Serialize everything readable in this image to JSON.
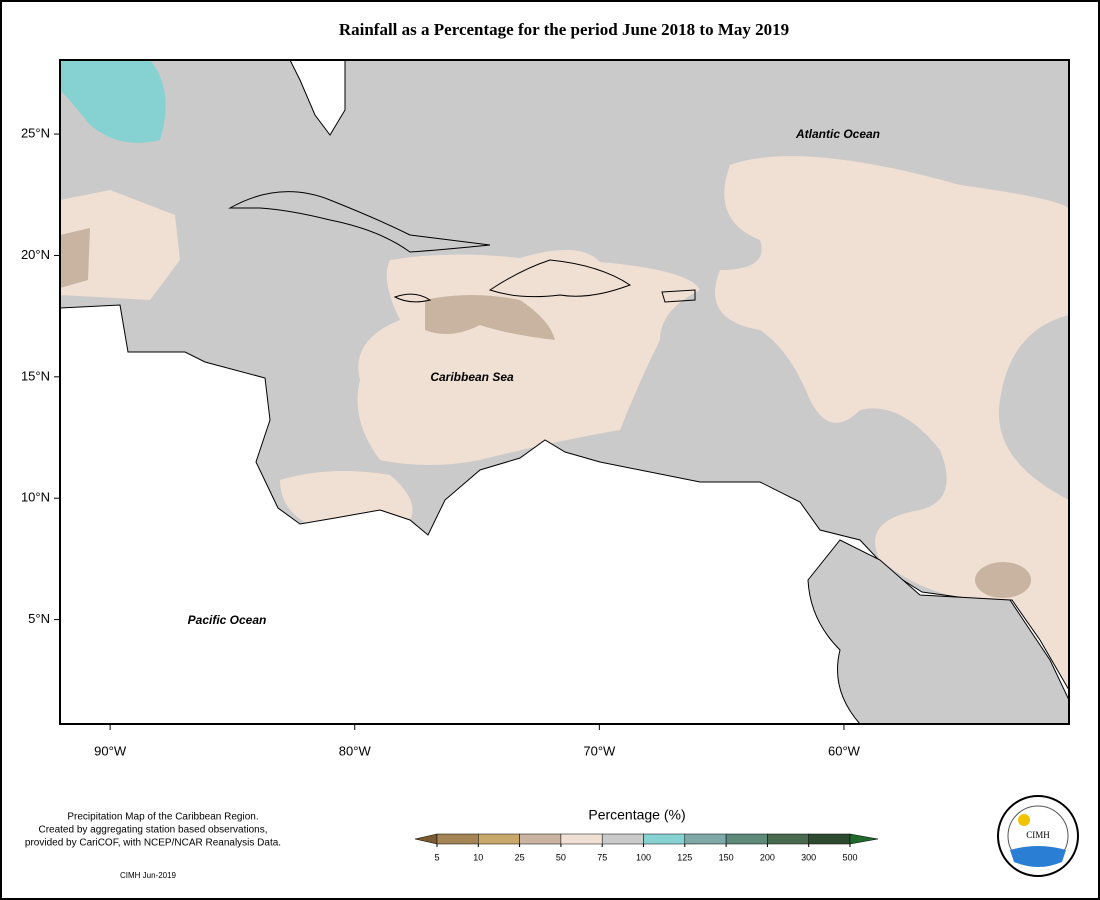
{
  "title": "Rainfall as a Percentage for the period June 2018 to May 2019",
  "map": {
    "xlim": [
      -92.05,
      -50.8
    ],
    "ylim": [
      0.7,
      28.05
    ],
    "xticks": [
      {
        "value": -90,
        "label": "90°W"
      },
      {
        "value": -80,
        "label": "80°W"
      },
      {
        "value": -70,
        "label": "70°W"
      },
      {
        "value": -60,
        "label": "60°W"
      }
    ],
    "yticks": [
      {
        "value": 25,
        "label": "25°N"
      },
      {
        "value": 20,
        "label": "20°N"
      },
      {
        "value": 15,
        "label": "15°N"
      },
      {
        "value": 10,
        "label": "10°N"
      },
      {
        "value": 5,
        "label": "5°N"
      }
    ],
    "labels": [
      "Atlantic Ocean",
      "Caribbean Sea",
      "Pacific Ocean"
    ]
  },
  "legend": {
    "title": "Percentage (%)",
    "ticks": [
      5,
      10,
      25,
      50,
      75,
      100,
      125,
      150,
      200,
      300,
      500
    ],
    "colors": [
      "#7a5a30",
      "#a38556",
      "#c8a86b",
      "#c8b4a0",
      "#f0dfd3",
      "#cacaca",
      "#86d2d2",
      "#7fa8a8",
      "#5e8a7a",
      "#496a4e",
      "#2e4a2e",
      "#1f6a2a"
    ]
  },
  "footnote": [
    "Precipitation Map of the Caribbean Region.",
    "Created by aggregating station based observations,",
    "provided by CariCOF, with NCEP/NCAR Reanalysis Data."
  ],
  "credit": "CIMH Jun-2019",
  "logo": "CIMH"
}
